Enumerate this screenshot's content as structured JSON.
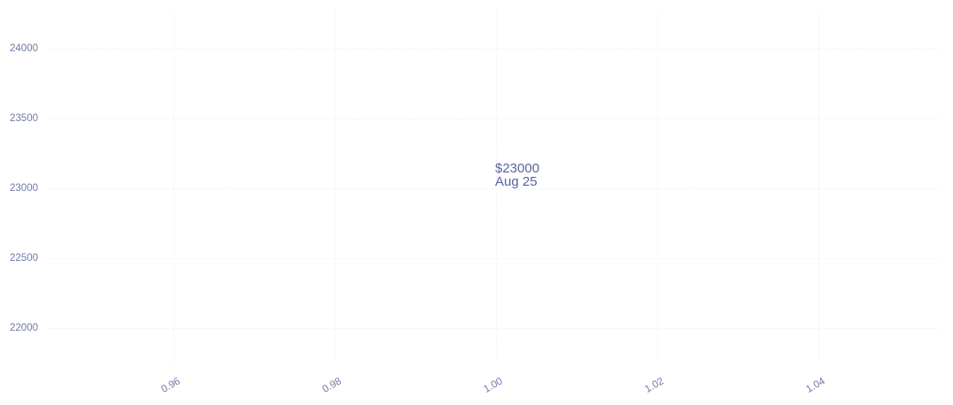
{
  "chart_data": {
    "type": "scatter",
    "title": "",
    "xlabel": "",
    "ylabel": "",
    "grid": "dotted",
    "legend": "none",
    "background": "#ffffff",
    "x_ticks": [
      {
        "value": 0.96,
        "label": "0.96"
      },
      {
        "value": 0.98,
        "label": "0.98"
      },
      {
        "value": 1.0,
        "label": "1.00"
      },
      {
        "value": 1.02,
        "label": "1.02"
      },
      {
        "value": 1.04,
        "label": "1.04"
      }
    ],
    "y_ticks": [
      {
        "value": 24000,
        "label": "24000"
      },
      {
        "value": 23500,
        "label": "23500"
      },
      {
        "value": 23000,
        "label": "23000"
      },
      {
        "value": 22500,
        "label": "22500"
      },
      {
        "value": 22000,
        "label": "22000"
      }
    ],
    "xlim": [
      0.9445,
      1.0553
    ],
    "ylim": [
      21740,
      24266
    ],
    "x_tick_angle_deg": -30,
    "points": [
      {
        "x": 1.0,
        "y": 23000,
        "label": "$23000",
        "date": "Aug 25",
        "marker": "none"
      }
    ],
    "annotation": {
      "price": "$23000",
      "date": "Aug 25",
      "x": 1.0,
      "y": 23000
    },
    "colors": {
      "tick_label": "#707aa6",
      "annotation_text": "#56649d",
      "gridline": "#eaebf7",
      "background": "#ffffff"
    }
  }
}
